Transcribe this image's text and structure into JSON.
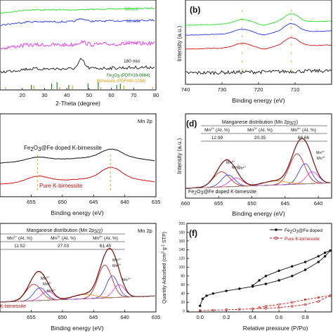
{
  "chart_data": [
    {
      "panel": "a",
      "type": "line",
      "xlabel": "2-Theta (degree)",
      "xlim": [
        10,
        80
      ],
      "xticks": [
        "20",
        "30",
        "40",
        "50",
        "60",
        "70",
        "80"
      ],
      "series": [
        {
          "name": "30 min",
          "color": "#22dd22"
        },
        {
          "name": "60 min",
          "color": "#2233ee"
        },
        {
          "name": "90 min",
          "color": "#ee33ee"
        },
        {
          "name": "180 min",
          "color": "#111111"
        }
      ],
      "references": [
        {
          "name_main": "Fe",
          "sub1": "2",
          "mid": "O",
          "sub2": "3",
          "name_tail": " (PDF#33-0664)",
          "color": "#117711",
          "lines": [
            24.1,
            33.2,
            35.6,
            40.9,
            49.5,
            54.1,
            62.4,
            64.0
          ]
        },
        {
          "name_main": "Birnessite (PDF#80-1098)",
          "color": "#dd9900",
          "lines": [
            12.5,
            25.2,
            36.8,
            42.5,
            55.3,
            65.6,
            78.5
          ]
        }
      ]
    },
    {
      "panel": "b",
      "panel_label": "(b)",
      "type": "line",
      "xlabel": "Binding energy (eV)",
      "ylabel": "Intensity (a.u.)",
      "xlim": [
        740,
        700
      ],
      "xticks": [
        "740",
        "730",
        "720",
        "710"
      ],
      "xtick_values": [
        740,
        730,
        720,
        710
      ],
      "markers": [
        724.5,
        711.0
      ]
    },
    {
      "panel": "c",
      "type": "line",
      "title": "Mn 2p",
      "xlabel": "Binding energy (eV)",
      "xlim": [
        660,
        635
      ],
      "xticks": [
        "655",
        "650",
        "645",
        "640",
        "635"
      ],
      "xtick_values": [
        655,
        650,
        645,
        640,
        635
      ],
      "markers": [
        654.0,
        642.3
      ],
      "series": [
        {
          "name_pre": "Fe",
          "sub1": "2",
          "mid": "O",
          "sub2": "3",
          "name_tail": "@Fe doped K-birnessite",
          "color": "#111111"
        },
        {
          "name": "Pure K-birnessite",
          "color": "#cc1111"
        }
      ]
    },
    {
      "panel": "d",
      "panel_label": "(d)",
      "type": "line",
      "title": "Manganese distribution (Mn 2p",
      "title_sub": "3/2",
      "title_end": ")",
      "xlabel": "Binding energy (eV)",
      "ylabel": "Intensity (a.u.)",
      "xlim": [
        660,
        638
      ],
      "xticks": [
        "660",
        "655",
        "650",
        "645",
        "640"
      ],
      "xtick_values": [
        660,
        655,
        650,
        645,
        640
      ],
      "table": {
        "headers": [
          {
            "ion": "Mn",
            "charge": "2+",
            "unit": " (At. %)"
          },
          {
            "ion": "Mn",
            "charge": "3+",
            "unit": " (At. %)"
          },
          {
            "ion": "Mn",
            "charge": "4+",
            "unit": " (At. %)"
          }
        ],
        "values": [
          "12.99",
          "20.35",
          "66.66"
        ]
      },
      "peak_labels": [
        {
          "ion": "Mn",
          "charge": "4+"
        },
        {
          "ion": "Mn",
          "charge": "3+"
        },
        {
          "ion": "Mn",
          "charge": "2+"
        }
      ],
      "sample_label": {
        "pre": "Fe",
        "sub1": "2",
        "mid": "O",
        "sub2": "3",
        "tail": "@Fe doped K-birnessite"
      }
    },
    {
      "panel": "e",
      "type": "line",
      "title": "Mn 2p",
      "subtitle": "Manganese distribution (Mn 2p",
      "subtitle_sub": "3/2",
      "subtitle_end": ")",
      "xlabel": "Binding energy (eV)",
      "xlim": [
        660,
        635
      ],
      "xticks": [
        "655",
        "650",
        "645",
        "640",
        "635"
      ],
      "xtick_values": [
        655,
        650,
        645,
        640,
        635
      ],
      "table": {
        "headers": [
          {
            "ion": "Mn",
            "charge": "2+",
            "unit": " (At. %)"
          },
          {
            "ion": "Mn",
            "charge": "3+",
            "unit": " (At. %)"
          },
          {
            "ion": "Mn",
            "charge": "4+",
            "unit": " (At. %)"
          }
        ],
        "values": [
          "11.52",
          "27.03",
          "61.45"
        ]
      },
      "peak_labels": [
        {
          "ion": "Mn",
          "charge": "4+"
        },
        {
          "ion": "Mn",
          "charge": "3+"
        },
        {
          "ion": "Mn",
          "charge": "2+"
        }
      ],
      "sample_label": "K-birnessite"
    },
    {
      "panel": "f",
      "panel_label": "(f)",
      "type": "line",
      "xlabel": "Relative pressure (P/Po)",
      "ylabel_pre": "Quantity Adsorbed (cm",
      "ylabel_sup1": "3",
      "ylabel_mid": " g",
      "ylabel_sup2": "-1",
      "ylabel_end": " STP)",
      "xlim": [
        -0.1,
        1.0
      ],
      "ylim": [
        -2,
        200
      ],
      "xticks": [
        "0.0",
        "0.2",
        "0.4",
        "0.6",
        "0.8"
      ],
      "xtick_values": [
        0.0,
        0.2,
        0.4,
        0.6,
        0.8
      ],
      "yticks": [
        "0",
        "20",
        "40",
        "60",
        "80",
        "100",
        "120",
        "140",
        "160",
        "180",
        "200"
      ],
      "ytick_values": [
        0,
        20,
        40,
        60,
        80,
        100,
        120,
        140,
        160,
        180,
        200
      ],
      "series": [
        {
          "pre": "Fe",
          "sub1": "2",
          "mid": "O",
          "sub2": "3",
          "tail": "@Fe doped",
          "color": "#111111",
          "adsorption": [
            [
              0.0,
              12
            ],
            [
              0.02,
              28
            ],
            [
              0.05,
              35
            ],
            [
              0.1,
              40
            ],
            [
              0.2,
              46
            ],
            [
              0.3,
              51
            ],
            [
              0.4,
              56
            ],
            [
              0.5,
              62
            ],
            [
              0.6,
              70
            ],
            [
              0.7,
              80
            ],
            [
              0.8,
              94
            ],
            [
              0.9,
              112
            ],
            [
              0.95,
              125
            ],
            [
              0.99,
              138
            ]
          ],
          "desorption": [
            [
              0.99,
              138
            ],
            [
              0.95,
              133
            ],
            [
              0.9,
              125
            ],
            [
              0.8,
              112
            ],
            [
              0.7,
              102
            ],
            [
              0.6,
              92
            ],
            [
              0.5,
              80
            ],
            [
              0.45,
              70
            ],
            [
              0.4,
              58
            ]
          ]
        },
        {
          "name": "Pure K-birnessite",
          "color": "#cc1111",
          "adsorption": [
            [
              0.0,
              1
            ],
            [
              0.1,
              2
            ],
            [
              0.2,
              3
            ],
            [
              0.3,
              4
            ],
            [
              0.4,
              5
            ],
            [
              0.5,
              6
            ],
            [
              0.6,
              8
            ],
            [
              0.7,
              11
            ],
            [
              0.8,
              15
            ],
            [
              0.9,
              22
            ],
            [
              0.99,
              35
            ]
          ],
          "desorption": [
            [
              0.99,
              35
            ],
            [
              0.9,
              31
            ],
            [
              0.8,
              26
            ],
            [
              0.7,
              20
            ],
            [
              0.6,
              15
            ],
            [
              0.5,
              11
            ],
            [
              0.45,
              8
            ]
          ]
        }
      ]
    }
  ]
}
